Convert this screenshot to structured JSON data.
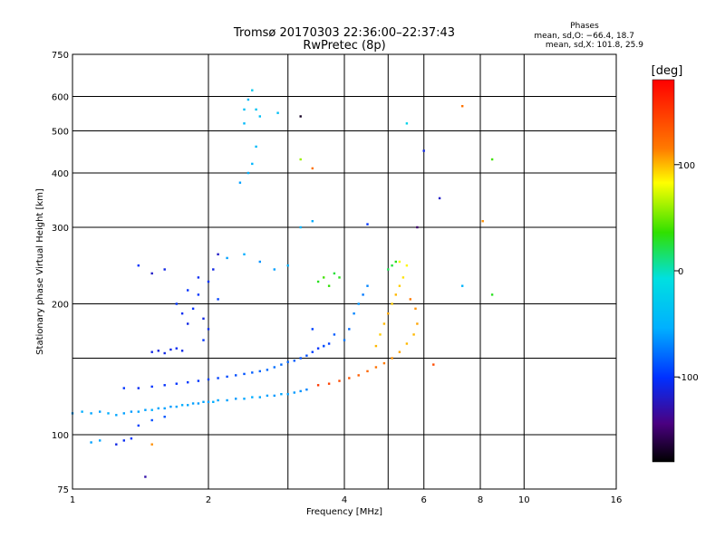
{
  "chart_data": {
    "type": "scatter",
    "title": "Tromsø 20170303 22:36:00–22:37:43",
    "subtitle": "RwPretec (8p)",
    "xlabel": "Frequency [MHz]",
    "ylabel": "Stationary phase Virtual Height [km]",
    "x_scale": "log2",
    "y_scale": "log",
    "xlim": [
      1,
      16
    ],
    "ylim": [
      75,
      750
    ],
    "x_ticks": [
      1,
      2,
      4,
      6,
      8,
      10,
      16
    ],
    "x_tick_labels": [
      "1",
      "2",
      "4",
      "6",
      "8",
      "10",
      "16"
    ],
    "x_minor_grid": [
      3,
      5
    ],
    "y_ticks": [
      75,
      100,
      200,
      300,
      400,
      500,
      600,
      750
    ],
    "y_tick_labels": [
      "75",
      "100",
      "200",
      "300",
      "400",
      "500",
      "600",
      "750"
    ],
    "y_minor_grid": [
      150
    ],
    "grid": true,
    "stats_title": "Phases",
    "stats_lines": [
      "mean, sd,O: −66.4, 18.7",
      "mean, sd,X: 101.8, 25.9"
    ],
    "colorbar": {
      "label": "[deg]",
      "range": [
        -180,
        180
      ],
      "ticks": [
        100,
        0,
        -100
      ],
      "tick_labels": [
        "100",
        "0",
        "-100"
      ]
    },
    "series": [
      {
        "values": [
          [
            1.0,
            112,
            -60
          ],
          [
            1.05,
            113,
            -55
          ],
          [
            1.1,
            112,
            -58
          ],
          [
            1.15,
            113,
            -60
          ],
          [
            1.2,
            112,
            -55
          ],
          [
            1.25,
            111,
            -58
          ],
          [
            1.3,
            112,
            -60
          ],
          [
            1.35,
            113,
            -62
          ],
          [
            1.4,
            113,
            -58
          ],
          [
            1.45,
            114,
            -60
          ],
          [
            1.5,
            114,
            -55
          ],
          [
            1.55,
            115,
            -58
          ],
          [
            1.6,
            115,
            -60
          ],
          [
            1.65,
            116,
            -62
          ],
          [
            1.7,
            116,
            -58
          ],
          [
            1.75,
            117,
            -55
          ],
          [
            1.8,
            117,
            -58
          ],
          [
            1.85,
            118,
            -60
          ],
          [
            1.9,
            118,
            -62
          ],
          [
            1.95,
            119,
            -58
          ],
          [
            2.0,
            119,
            -60
          ],
          [
            2.05,
            119,
            -55
          ],
          [
            2.1,
            120,
            -58
          ],
          [
            2.2,
            120,
            -60
          ],
          [
            2.3,
            121,
            -62
          ],
          [
            2.4,
            121,
            -58
          ],
          [
            2.5,
            122,
            -55
          ],
          [
            2.6,
            122,
            -58
          ],
          [
            2.7,
            123,
            -60
          ],
          [
            2.8,
            123,
            -62
          ],
          [
            2.9,
            124,
            -58
          ],
          [
            3.0,
            124,
            -60
          ],
          [
            3.1,
            125,
            -62
          ],
          [
            3.2,
            126,
            -65
          ],
          [
            3.3,
            127,
            -70
          ]
        ]
      },
      {
        "values": [
          [
            1.3,
            128,
            -100
          ],
          [
            1.4,
            128,
            -105
          ],
          [
            1.5,
            129,
            -100
          ],
          [
            1.6,
            130,
            -102
          ],
          [
            1.7,
            131,
            -100
          ],
          [
            1.8,
            132,
            -98
          ],
          [
            1.9,
            133,
            -100
          ],
          [
            2.0,
            134,
            -95
          ],
          [
            2.1,
            135,
            -95
          ],
          [
            2.2,
            136,
            -92
          ],
          [
            2.3,
            137,
            -90
          ],
          [
            2.4,
            138,
            -88
          ],
          [
            2.5,
            139,
            -85
          ],
          [
            2.6,
            140,
            -82
          ],
          [
            2.7,
            141,
            -80
          ],
          [
            2.8,
            143,
            -78
          ],
          [
            2.9,
            145,
            -80
          ],
          [
            3.0,
            147,
            -82
          ],
          [
            3.1,
            148,
            -85
          ],
          [
            3.2,
            150,
            -88
          ],
          [
            3.3,
            152,
            -90
          ],
          [
            3.4,
            155,
            -95
          ],
          [
            3.5,
            158,
            -100
          ],
          [
            3.6,
            160,
            -100
          ],
          [
            3.7,
            162,
            -95
          ]
        ]
      },
      {
        "values": [
          [
            1.5,
            155,
            -110
          ],
          [
            1.55,
            156,
            -112
          ],
          [
            1.6,
            154,
            -110
          ],
          [
            1.65,
            157,
            -108
          ],
          [
            1.7,
            158,
            -105
          ],
          [
            1.75,
            156,
            -108
          ]
        ]
      },
      {
        "values": [
          [
            1.7,
            200,
            -100
          ],
          [
            1.75,
            190,
            -105
          ],
          [
            1.8,
            180,
            -110
          ],
          [
            1.85,
            195,
            -100
          ],
          [
            1.9,
            210,
            -100
          ],
          [
            1.95,
            185,
            -110
          ],
          [
            2.0,
            175,
            -105
          ],
          [
            2.0,
            225,
            -100
          ],
          [
            2.05,
            240,
            -110
          ],
          [
            2.1,
            260,
            -120
          ],
          [
            1.9,
            230,
            -105
          ],
          [
            1.8,
            215,
            -100
          ],
          [
            2.1,
            205,
            -95
          ],
          [
            1.95,
            165,
            -100
          ]
        ]
      },
      {
        "values": [
          [
            1.6,
            240,
            -110
          ],
          [
            1.5,
            235,
            -120
          ],
          [
            1.4,
            245,
            -100
          ],
          [
            2.2,
            255,
            -60
          ],
          [
            2.4,
            260,
            -55
          ],
          [
            2.6,
            250,
            -65
          ],
          [
            2.8,
            240,
            -60
          ],
          [
            3.0,
            245,
            -55
          ],
          [
            3.2,
            300,
            -50
          ],
          [
            3.4,
            310,
            -55
          ]
        ]
      },
      {
        "values": [
          [
            2.4,
            560,
            -40
          ],
          [
            2.45,
            590,
            -45
          ],
          [
            2.5,
            620,
            -30
          ],
          [
            2.55,
            560,
            -35
          ],
          [
            2.6,
            540,
            -40
          ],
          [
            2.4,
            520,
            -45
          ],
          [
            2.5,
            420,
            -50
          ],
          [
            2.45,
            400,
            -55
          ],
          [
            2.55,
            460,
            -45
          ],
          [
            2.85,
            550,
            -40
          ],
          [
            2.35,
            380,
            -60
          ]
        ]
      },
      {
        "values": [
          [
            3.5,
            130,
            150
          ],
          [
            3.7,
            131,
            145
          ],
          [
            3.9,
            133,
            140
          ],
          [
            4.1,
            135,
            135
          ],
          [
            4.3,
            137,
            130
          ],
          [
            4.5,
            140,
            125
          ],
          [
            4.7,
            143,
            120
          ],
          [
            4.9,
            146,
            115
          ],
          [
            5.1,
            150,
            110
          ],
          [
            5.3,
            155,
            105
          ],
          [
            5.5,
            162,
            100
          ],
          [
            5.7,
            170,
            100
          ],
          [
            5.8,
            180,
            105
          ],
          [
            5.75,
            195,
            110
          ],
          [
            5.6,
            205,
            115
          ]
        ]
      },
      {
        "values": [
          [
            4.7,
            160,
            100
          ],
          [
            4.8,
            170,
            95
          ],
          [
            4.9,
            180,
            100
          ],
          [
            5.0,
            190,
            105
          ],
          [
            5.1,
            200,
            95
          ],
          [
            5.2,
            210,
            100
          ],
          [
            5.3,
            220,
            95
          ],
          [
            5.4,
            230,
            90
          ],
          [
            5.5,
            245,
            85
          ],
          [
            5.3,
            250,
            80
          ]
        ]
      },
      {
        "values": [
          [
            3.5,
            225,
            30
          ],
          [
            3.6,
            230,
            40
          ],
          [
            3.7,
            220,
            35
          ],
          [
            3.8,
            235,
            25
          ],
          [
            3.9,
            230,
            30
          ],
          [
            5.0,
            240,
            20
          ],
          [
            5.1,
            245,
            25
          ],
          [
            5.2,
            250,
            30
          ]
        ]
      },
      {
        "values": [
          [
            4.2,
            190,
            -70
          ],
          [
            4.3,
            200,
            -65
          ],
          [
            4.4,
            210,
            -75
          ],
          [
            4.5,
            220,
            -70
          ],
          [
            4.1,
            175,
            -80
          ],
          [
            4.0,
            165,
            -75
          ],
          [
            3.8,
            170,
            -85
          ],
          [
            3.6,
            160,
            -90
          ],
          [
            3.4,
            175,
            -95
          ]
        ]
      },
      {
        "values": [
          [
            1.25,
            95,
            -110
          ],
          [
            1.3,
            97,
            -105
          ],
          [
            1.35,
            98,
            -100
          ],
          [
            1.1,
            96,
            -60
          ],
          [
            1.15,
            97,
            -58
          ],
          [
            1.4,
            105,
            -95
          ],
          [
            1.5,
            108,
            -90
          ],
          [
            1.6,
            110,
            -88
          ],
          [
            1.45,
            80,
            -130
          ],
          [
            1.5,
            95,
            110
          ]
        ]
      },
      {
        "values": [
          [
            7.3,
            570,
            120
          ],
          [
            8.1,
            310,
            110
          ],
          [
            8.5,
            430,
            40
          ],
          [
            8.5,
            210,
            30
          ],
          [
            7.3,
            220,
            -50
          ],
          [
            6.5,
            350,
            -120
          ],
          [
            6.0,
            450,
            -110
          ],
          [
            6.3,
            145,
            140
          ],
          [
            5.8,
            300,
            -150
          ],
          [
            3.2,
            430,
            60
          ],
          [
            3.4,
            410,
            120
          ],
          [
            3.2,
            540,
            -170
          ],
          [
            5.5,
            520,
            -20
          ],
          [
            4.5,
            305,
            -100
          ]
        ]
      }
    ]
  }
}
